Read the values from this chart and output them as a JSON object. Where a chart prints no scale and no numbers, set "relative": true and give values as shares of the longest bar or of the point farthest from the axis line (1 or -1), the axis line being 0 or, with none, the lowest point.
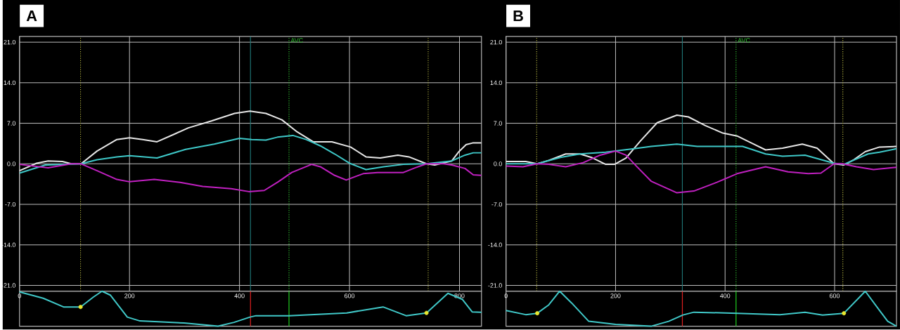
{
  "chart_data": [
    {
      "type": "line",
      "title": "A",
      "xlim": [
        0,
        840
      ],
      "xticks": [
        0,
        200,
        400,
        600,
        800
      ],
      "ylim": [
        -22,
        22
      ],
      "yticks": [
        {
          "value": 21,
          "label": "21.0"
        },
        {
          "value": 14,
          "label": "14.0"
        },
        {
          "value": 7,
          "label": "7.0"
        },
        {
          "value": 0,
          "label": "0.0"
        },
        {
          "value": -7,
          "label": "-7.0"
        },
        {
          "value": -14,
          "label": "-14.0"
        },
        {
          "value": -21,
          "label": "-21.0"
        }
      ],
      "grid": true,
      "tick_labels": "y",
      "series": [
        {
          "color": "#e6e6e6",
          "x": [
            0,
            31,
            52,
            78,
            94,
            112,
            141,
            177,
            200,
            224,
            250,
            281,
            307,
            349,
            391,
            419,
            448,
            477,
            505,
            534,
            568,
            602,
            630,
            656,
            688,
            708,
            740,
            755,
            786,
            798,
            812,
            824,
            840
          ],
          "values": [
            -1.2,
            0.1,
            0.5,
            0.4,
            0,
            0,
            2.2,
            4.2,
            4.5,
            4.2,
            3.8,
            5.1,
            6.2,
            7.4,
            8.7,
            9.1,
            8.7,
            7.6,
            5.5,
            3.8,
            3.8,
            2.9,
            1.2,
            1.0,
            1.5,
            1.2,
            0,
            -0.2,
            0.5,
            2.0,
            3.3,
            3.6,
            3.6
          ]
        },
        {
          "color": "#3ec8c8",
          "x": [
            0,
            47,
            112,
            141,
            177,
            200,
            250,
            302,
            354,
            400,
            422,
            448,
            469,
            497,
            521,
            547,
            573,
            600,
            630,
            662,
            698,
            740,
            786,
            810,
            825,
            840
          ],
          "values": [
            -1.6,
            -0.2,
            0,
            0.7,
            1.2,
            1.4,
            1.0,
            2.5,
            3.4,
            4.4,
            4.2,
            4.1,
            4.6,
            4.9,
            4.2,
            3.1,
            1.7,
            0.1,
            -1.0,
            -0.5,
            -0.1,
            0,
            0.5,
            1.5,
            1.9,
            1.9
          ]
        },
        {
          "color": "#c020c0",
          "x": [
            0,
            52,
            94,
            112,
            141,
            177,
            200,
            245,
            292,
            333,
            385,
            417,
            445,
            469,
            495,
            531,
            547,
            573,
            594,
            625,
            651,
            698,
            719,
            740,
            771,
            786,
            810,
            825,
            840
          ],
          "values": [
            -0.1,
            -0.7,
            0,
            0,
            -1.2,
            -2.7,
            -3.1,
            -2.7,
            -3.2,
            -3.9,
            -4.3,
            -4.8,
            -4.6,
            -3.2,
            -1.5,
            -0.1,
            -0.5,
            -2.0,
            -2.8,
            -1.7,
            -1.5,
            -1.5,
            -0.7,
            0,
            0,
            -0.2,
            -0.8,
            -1.9,
            -2.0
          ]
        }
      ],
      "ref_lines": [
        {
          "axis": "x",
          "value": 111,
          "color": "#b0b040",
          "line_style": "dotted"
        },
        {
          "axis": "x",
          "value": 743,
          "color": "#b0b040",
          "line_style": "dotted"
        },
        {
          "axis": "x",
          "value": 420,
          "color": "#207878",
          "line_style": "solid"
        },
        {
          "axis": "x",
          "value": 490,
          "color": "#30c030",
          "line_style": "dotted",
          "label": "AVC"
        }
      ]
    },
    {
      "type": "line",
      "relative": true,
      "xlim": [
        0,
        840
      ],
      "xticks": [
        0,
        200,
        400,
        600,
        800
      ],
      "tick_labels": "x",
      "series": [
        {
          "color": "#40c8c8",
          "x": [
            0,
            43,
            80,
            111,
            134,
            150,
            165,
            196,
            219,
            299,
            361,
            390,
            419,
            430,
            490,
            595,
            661,
            703,
            740,
            779,
            805,
            823,
            840
          ],
          "values": [
            0.98,
            0.8,
            0.55,
            0.55,
            0.83,
            1.0,
            0.89,
            0.26,
            0.15,
            0.09,
            0,
            0.11,
            0.26,
            0.3,
            0.3,
            0.38,
            0.55,
            0.3,
            0.38,
            0.94,
            0.77,
            0.41,
            0.4
          ]
        },
        {
          "type": "scatter",
          "color": "#e8e830",
          "x": [
            111,
            740
          ],
          "values": [
            0.55,
            0.38
          ]
        }
      ],
      "ref_lines": [
        {
          "axis": "x",
          "value": 420,
          "color": "#e02020",
          "line_style": "solid"
        },
        {
          "axis": "x",
          "value": 490,
          "color": "#20d020",
          "line_style": "solid"
        }
      ]
    },
    {
      "type": "line",
      "title": "B",
      "xlim": [
        0,
        713
      ],
      "xticks": [
        0,
        200,
        400,
        600
      ],
      "ylim": [
        -22,
        22
      ],
      "yticks": [
        {
          "value": 21,
          "label": "21.0"
        },
        {
          "value": 14,
          "label": "14.0"
        },
        {
          "value": 7,
          "label": "7.0"
        },
        {
          "value": 0,
          "label": "0.0"
        },
        {
          "value": -7,
          "label": "-7.0"
        },
        {
          "value": -14,
          "label": "-14.0"
        },
        {
          "value": -21,
          "label": "-21.0"
        }
      ],
      "grid": true,
      "tick_labels": "y",
      "series": [
        {
          "color": "#e6e6e6",
          "x": [
            0,
            36,
            57,
            78,
            109,
            135,
            156,
            182,
            198,
            219,
            245,
            276,
            312,
            333,
            364,
            396,
            422,
            448,
            474,
            505,
            541,
            568,
            599,
            617,
            635,
            656,
            682,
            713
          ],
          "values": [
            0.4,
            0.4,
            0,
            0.6,
            1.7,
            1.7,
            1.1,
            -0.1,
            -0.1,
            1.0,
            3.9,
            7.1,
            8.4,
            8.1,
            6.6,
            5.3,
            4.8,
            3.6,
            2.4,
            2.7,
            3.4,
            2.7,
            0,
            -0.2,
            0.7,
            2.1,
            2.9,
            3.0
          ]
        },
        {
          "color": "#3ec8c8",
          "x": [
            0,
            57,
            99,
            135,
            182,
            234,
            265,
            312,
            349,
            432,
            474,
            505,
            546,
            599,
            617,
            661,
            682,
            713
          ],
          "values": [
            0,
            0,
            1.1,
            1.7,
            2.0,
            2.6,
            3.0,
            3.4,
            3.0,
            3.0,
            1.7,
            1.3,
            1.5,
            0.1,
            -0.1,
            1.7,
            2.0,
            2.6
          ]
        },
        {
          "color": "#c020c0",
          "x": [
            0,
            31,
            57,
            78,
            109,
            141,
            172,
            200,
            219,
            239,
            265,
            312,
            343,
            385,
            422,
            474,
            515,
            552,
            575,
            599,
            614,
            640,
            671,
            713
          ],
          "values": [
            -0.4,
            -0.5,
            0,
            -0.1,
            -0.5,
            0.2,
            1.5,
            2.2,
            1.5,
            -0.5,
            -3.0,
            -5.0,
            -4.7,
            -3.2,
            -1.7,
            -0.5,
            -1.4,
            -1.7,
            -1.6,
            0,
            0,
            -0.5,
            -1.0,
            -0.6
          ]
        }
      ],
      "ref_lines": [
        {
          "axis": "x",
          "value": 56,
          "color": "#b0b040",
          "line_style": "dotted"
        },
        {
          "axis": "x",
          "value": 615,
          "color": "#b0b040",
          "line_style": "dotted"
        },
        {
          "axis": "x",
          "value": 322,
          "color": "#207878",
          "line_style": "solid"
        },
        {
          "axis": "x",
          "value": 420,
          "color": "#30c030",
          "line_style": "dotted",
          "label": "AVC"
        }
      ]
    },
    {
      "type": "line",
      "relative": true,
      "xlim": [
        0,
        713
      ],
      "xticks": [
        0,
        200,
        400,
        600
      ],
      "tick_labels": "x",
      "series": [
        {
          "color": "#40c8c8",
          "x": [
            0,
            36,
            57,
            78,
            98,
            120,
            151,
            200,
            265,
            297,
            323,
            343,
            422,
            500,
            546,
            578,
            617,
            656,
            682,
            697,
            713
          ],
          "values": [
            0.45,
            0.33,
            0.37,
            0.61,
            1.0,
            0.66,
            0.14,
            0.05,
            0,
            0.14,
            0.32,
            0.4,
            0.37,
            0.33,
            0.4,
            0.32,
            0.37,
            1.0,
            0.45,
            0.14,
            0
          ]
        },
        {
          "type": "scatter",
          "color": "#e8e830",
          "x": [
            57,
            617
          ],
          "values": [
            0.37,
            0.37
          ]
        }
      ],
      "ref_lines": [
        {
          "axis": "x",
          "value": 322,
          "color": "#e02020",
          "line_style": "solid"
        },
        {
          "axis": "x",
          "value": 420,
          "color": "#20d020",
          "line_style": "solid"
        }
      ]
    }
  ]
}
